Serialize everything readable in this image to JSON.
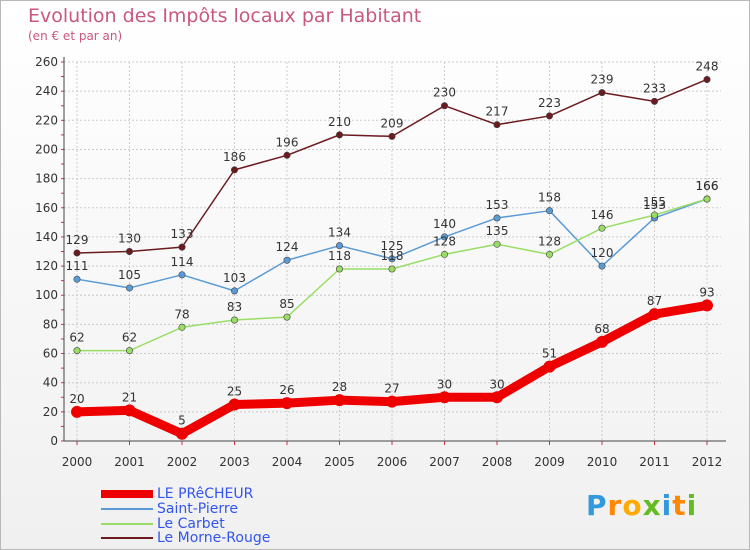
{
  "chart_data": {
    "type": "line",
    "title": "Evolution des Impôts locaux par Habitant",
    "subtitle": "(en € et par an)",
    "xlabel": "",
    "ylabel": "",
    "ylim": [
      0,
      260
    ],
    "yticks": [
      0,
      20,
      40,
      60,
      80,
      100,
      120,
      140,
      160,
      180,
      200,
      220,
      240,
      260
    ],
    "categories": [
      "2000",
      "2001",
      "2002",
      "2003",
      "2004",
      "2005",
      "2006",
      "2007",
      "2008",
      "2009",
      "2010",
      "2011",
      "2012"
    ],
    "grid": true,
    "legend_position": "bottom-left",
    "series": [
      {
        "name": "Le Morne-Rouge",
        "color": "#6b1a1e",
        "values": [
          129,
          130,
          133,
          186,
          196,
          210,
          209,
          230,
          217,
          223,
          239,
          233,
          248
        ]
      },
      {
        "name": "Saint-Pierre",
        "color": "#5b9bd5",
        "values": [
          111,
          105,
          114,
          103,
          124,
          134,
          125,
          140,
          153,
          158,
          120,
          153,
          166
        ]
      },
      {
        "name": "Le Carbet",
        "color": "#99dd66",
        "values": [
          62,
          62,
          78,
          83,
          85,
          118,
          118,
          128,
          135,
          128,
          146,
          155,
          166
        ]
      },
      {
        "name": "LE PRêCHEUR",
        "color": "#ee0000",
        "values": [
          20,
          21,
          5,
          25,
          26,
          28,
          27,
          30,
          30,
          51,
          68,
          87,
          93
        ]
      }
    ]
  },
  "legend": [
    {
      "label": "LE PRêCHEUR",
      "color": "#ee0000"
    },
    {
      "label": "Saint-Pierre",
      "color": "#5b9bd5"
    },
    {
      "label": "Le Carbet",
      "color": "#99dd66"
    },
    {
      "label": "Le Morne-Rouge",
      "color": "#6b1a1e"
    }
  ],
  "logo": {
    "letters": [
      "P",
      "r",
      "o",
      "x",
      "i",
      "t",
      "i"
    ],
    "colors": [
      "#3399dd",
      "#ff8800",
      "#ffaa00",
      "#66bb22",
      "#3399dd",
      "#ff8800",
      "#66bb22"
    ]
  }
}
